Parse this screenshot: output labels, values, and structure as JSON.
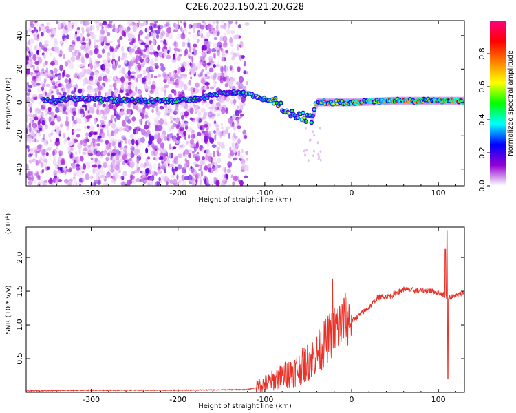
{
  "title": "C2E6.2023.150.21.20.G28",
  "colors": {
    "snr_line": "#e8332a",
    "frame": "#000000"
  },
  "chart_data": [
    {
      "type": "heatmap",
      "xlabel": "Height of straight line (km)",
      "ylabel": "Frequency (Hz)",
      "xlim": [
        -375,
        130
      ],
      "ylim": [
        -50,
        49
      ],
      "xticks": [
        -300,
        -200,
        -100,
        0,
        100
      ],
      "yticks": [
        -40,
        -20,
        0,
        20,
        40
      ],
      "colorbar": {
        "label": "Normalized spectral amplitude",
        "range": [
          0.0,
          1.0
        ],
        "ticks": [
          0.0,
          0.2,
          0.4,
          0.6,
          0.8
        ],
        "colormap": "rainbow",
        "stops": [
          "#ffffff",
          "#9400d3",
          "#0000ff",
          "#00ffff",
          "#00ff00",
          "#ffff00",
          "#ff8000",
          "#ff0000",
          "#ff0080"
        ]
      },
      "signal_trace": [
        {
          "x": -350,
          "y": 0
        },
        {
          "x": -330,
          "y": 2
        },
        {
          "x": -300,
          "y": 2
        },
        {
          "x": -260,
          "y": 1
        },
        {
          "x": -200,
          "y": 1
        },
        {
          "x": -175,
          "y": 2
        },
        {
          "x": -150,
          "y": 6
        },
        {
          "x": -120,
          "y": 5
        },
        {
          "x": -100,
          "y": 2
        },
        {
          "x": -85,
          "y": 0
        },
        {
          "x": -75,
          "y": -5
        },
        {
          "x": -60,
          "y": -8
        },
        {
          "x": -45,
          "y": -10
        },
        {
          "x": -40,
          "y": 0
        },
        {
          "x": -20,
          "y": 0
        },
        {
          "x": 0,
          "y": 0
        },
        {
          "x": 50,
          "y": 1
        },
        {
          "x": 100,
          "y": 1
        },
        {
          "x": 130,
          "y": 1
        }
      ]
    },
    {
      "type": "line",
      "xlabel": "Height of straight line (km)",
      "ylabel": "SNR (10 * v/v)",
      "y_multiplier": "(x10⁴)",
      "xlim": [
        -375,
        130
      ],
      "ylim": [
        0,
        2.45
      ],
      "xticks": [
        -300,
        -200,
        -100,
        0,
        100
      ],
      "yticks": [
        0.5,
        1.0,
        1.5,
        2.0
      ],
      "envelope": [
        {
          "x": -375,
          "y": 0.02
        },
        {
          "x": -300,
          "y": 0.03
        },
        {
          "x": -200,
          "y": 0.03
        },
        {
          "x": -120,
          "y": 0.04
        },
        {
          "x": -100,
          "y": 0.1
        },
        {
          "x": -80,
          "y": 0.2
        },
        {
          "x": -60,
          "y": 0.3
        },
        {
          "x": -40,
          "y": 0.5
        },
        {
          "x": -20,
          "y": 0.85
        },
        {
          "x": 0,
          "y": 1.05
        },
        {
          "x": 20,
          "y": 1.25
        },
        {
          "x": 30,
          "y": 1.4
        },
        {
          "x": 45,
          "y": 1.42
        },
        {
          "x": 60,
          "y": 1.52
        },
        {
          "x": 75,
          "y": 1.5
        },
        {
          "x": 90,
          "y": 1.5
        },
        {
          "x": 105,
          "y": 1.45
        },
        {
          "x": 110,
          "y": 1.4
        },
        {
          "x": 120,
          "y": 1.42
        },
        {
          "x": 130,
          "y": 1.47
        }
      ],
      "spikes": [
        {
          "x": -22,
          "y": 1.68
        },
        {
          "x": 108,
          "y": 2.12
        },
        {
          "x": 110,
          "y": 2.4
        },
        {
          "x": 111,
          "y": 0.2
        }
      ]
    }
  ]
}
